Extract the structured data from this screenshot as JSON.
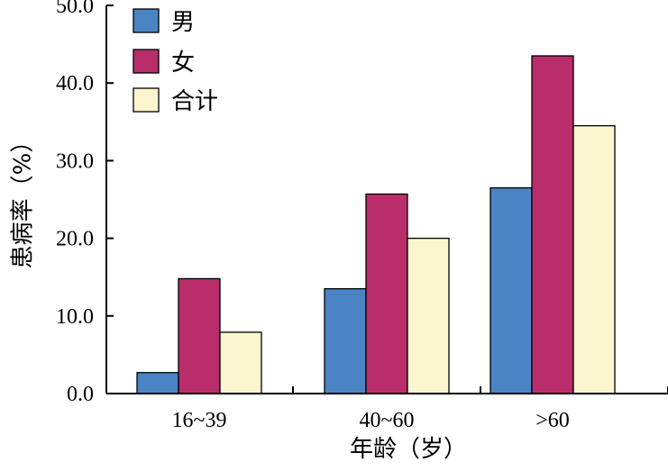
{
  "chart_data": {
    "type": "bar",
    "title": "",
    "xlabel": "年龄（岁）",
    "ylabel": "患病率（%）",
    "categories": [
      "16~39",
      "40~60",
      ">60"
    ],
    "series": [
      {
        "name": "男",
        "color": "#4a84c4",
        "values": [
          2.7,
          13.5,
          26.5
        ]
      },
      {
        "name": "女",
        "color": "#b92e6a",
        "values": [
          14.8,
          25.7,
          43.5
        ]
      },
      {
        "name": "合计",
        "color": "#fbf6cf",
        "values": [
          7.9,
          20.0,
          34.5
        ]
      }
    ],
    "ylim": [
      0,
      50
    ],
    "yticks": [
      0,
      10,
      20,
      30,
      40,
      50
    ],
    "ytick_labels": [
      "0.0",
      "10.0",
      "20.0",
      "30.0",
      "40.0",
      "50.0"
    ],
    "grid": false,
    "legend_position": "top-left"
  }
}
